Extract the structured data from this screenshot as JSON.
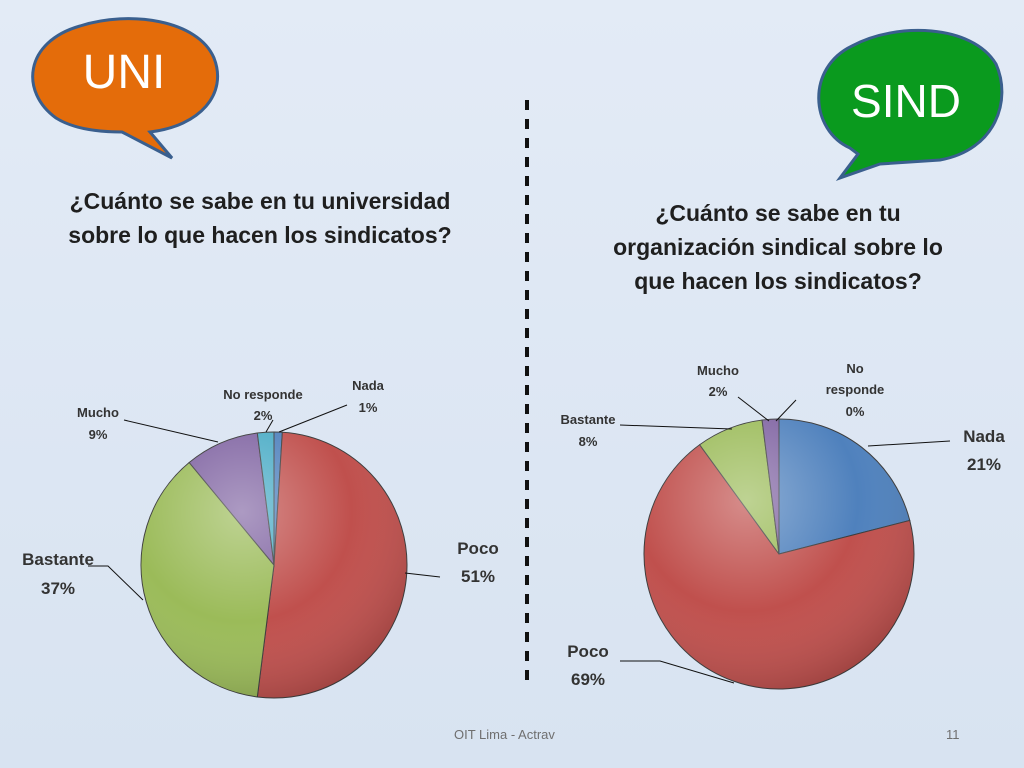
{
  "bubbles": [
    {
      "label": "UNI",
      "color": "#e46c0a"
    },
    {
      "label": "SIND",
      "color": "#0a9a1e"
    }
  ],
  "questions": {
    "left": [
      "¿Cuánto se sabe en tu universidad",
      "sobre lo que hacen los sindicatos?"
    ],
    "right": [
      "¿Cuánto se sabe en tu",
      "organización sindical sobre lo",
      "que hacen los sindicatos?"
    ]
  },
  "footer": {
    "source": "OIT Lima - Actrav",
    "page": "11"
  },
  "chart_data": [
    {
      "type": "pie",
      "title": "",
      "slices": [
        {
          "name": "Nada",
          "value": 1,
          "label": "1%",
          "color": "#4f81bd"
        },
        {
          "name": "Poco",
          "value": 51,
          "label": "51%",
          "color": "#c0504d"
        },
        {
          "name": "Bastante",
          "value": 37,
          "label": "37%",
          "color": "#9bbb59"
        },
        {
          "name": "Mucho",
          "value": 9,
          "label": "9%",
          "color": "#8064a2"
        },
        {
          "name": "No responde",
          "value": 2,
          "label": "2%",
          "color": "#4bacc6"
        }
      ]
    },
    {
      "type": "pie",
      "title": "",
      "slices": [
        {
          "name": "Nada",
          "value": 21,
          "label": "21%",
          "color": "#4f81bd"
        },
        {
          "name": "Poco",
          "value": 69,
          "label": "69%",
          "color": "#c0504d"
        },
        {
          "name": "Bastante",
          "value": 8,
          "label": "8%",
          "color": "#9bbb59"
        },
        {
          "name": "Mucho",
          "value": 2,
          "label": "2%",
          "color": "#8064a2"
        },
        {
          "name": "No responde",
          "value": 0,
          "label": "0%",
          "color": "#4bacc6"
        }
      ]
    }
  ]
}
